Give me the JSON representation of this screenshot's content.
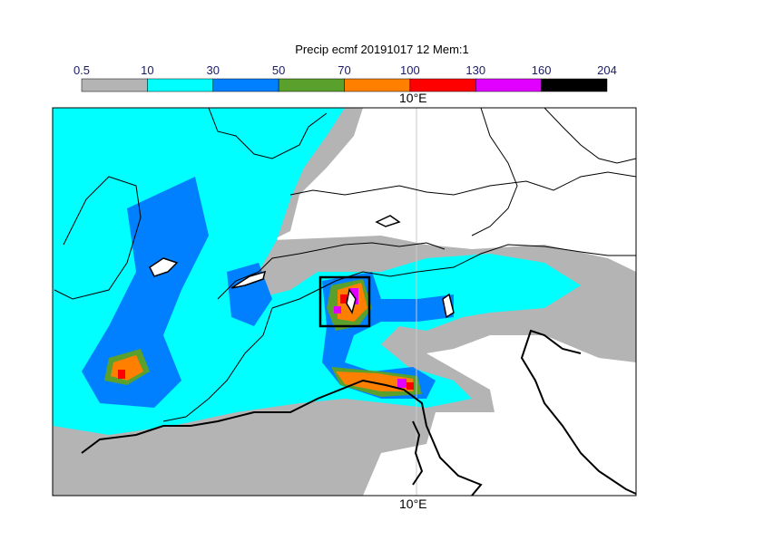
{
  "title": "Precip ecmf 20191017 12 Mem:1",
  "legend": {
    "ticks": [
      "0.5",
      "10",
      "30",
      "50",
      "70",
      "100",
      "130",
      "160",
      "204"
    ],
    "colors": [
      "#b4b4b4",
      "#00ffff",
      "#0080ff",
      "#5aa02c",
      "#ff8000",
      "#ff0000",
      "#e100ff",
      "#000000"
    ]
  },
  "map": {
    "lon_label_top": "10°E",
    "lon_label_bottom": "10°E"
  }
}
